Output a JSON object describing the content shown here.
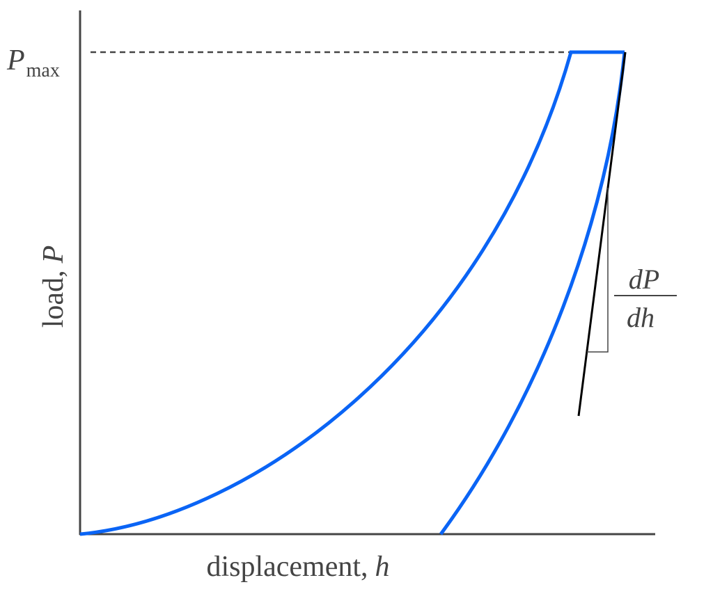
{
  "y_marker": {
    "symbol": "P",
    "subscript": "max"
  },
  "y_axis": {
    "text": "load,",
    "symbol": "P"
  },
  "x_axis": {
    "text": "displacement,",
    "symbol": "h"
  },
  "slope": {
    "numerator": "dP",
    "denominator": "dh"
  }
}
